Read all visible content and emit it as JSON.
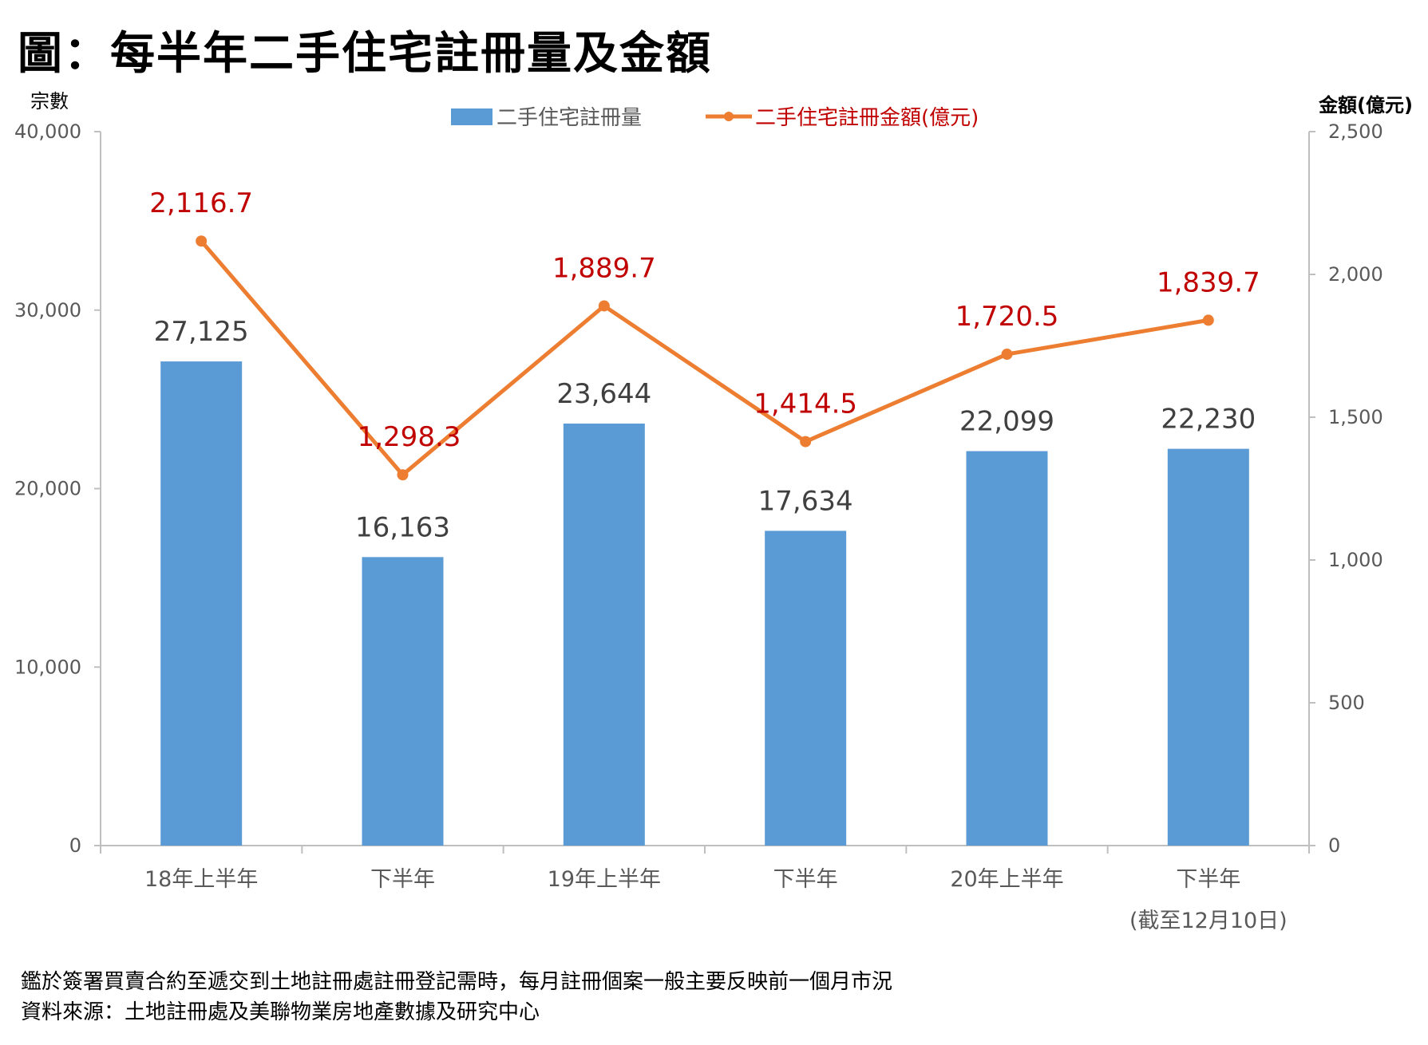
{
  "title": "圖：每半年二手住宅註冊量及金額",
  "notes": {
    "line1": "鑑於簽署買賣合約至遞交到土地註冊處註冊登記需時，每月註冊個案一般主要反映前一個月市況",
    "line2": "資料來源：土地註冊處及美聯物業房地產數據及研究中心"
  },
  "colors": {
    "bar": "#5B9BD5",
    "line": "#ED7D31",
    "line_label": "#C00000",
    "bar_label": "#404040",
    "axis": "#BFBFBF",
    "tick": "#595959"
  },
  "chart_data": {
    "type": "bar+line",
    "categories": [
      "18年上半年",
      "下半年",
      "19年上半年",
      "下半年",
      "20年上半年",
      "下半年"
    ],
    "category_sublabels": [
      "",
      "",
      "",
      "",
      "",
      "(截至12月10日)"
    ],
    "series": [
      {
        "name": "二手住宅註冊量",
        "type": "bar",
        "axis": "left",
        "values": [
          27125,
          16163,
          23644,
          17634,
          22099,
          22230
        ],
        "labels": [
          "27,125",
          "16,163",
          "23,644",
          "17,634",
          "22,099",
          "22,230"
        ]
      },
      {
        "name": "二手住宅註冊金額(億元)",
        "type": "line",
        "axis": "right",
        "values": [
          2116.7,
          1298.3,
          1889.7,
          1414.5,
          1720.5,
          1839.7
        ],
        "labels": [
          "2,116.7",
          "1,298.3",
          "1,889.7",
          "1,414.5",
          "1,720.5",
          "1,839.7"
        ]
      }
    ],
    "y_left": {
      "label": "宗數",
      "min": 0,
      "max": 40000,
      "ticks": [
        0,
        10000,
        20000,
        30000,
        40000
      ],
      "tick_labels": [
        "0",
        "10,000",
        "20,000",
        "30,000",
        "40,000"
      ]
    },
    "y_right": {
      "label": "金額(億元)",
      "min": 0,
      "max": 2500,
      "ticks": [
        0,
        500,
        1000,
        1500,
        2000,
        2500
      ],
      "tick_labels": [
        "0",
        "500",
        "1,000",
        "1,500",
        "2,000",
        "2,500"
      ]
    },
    "legend": "top-center",
    "grid": false
  }
}
